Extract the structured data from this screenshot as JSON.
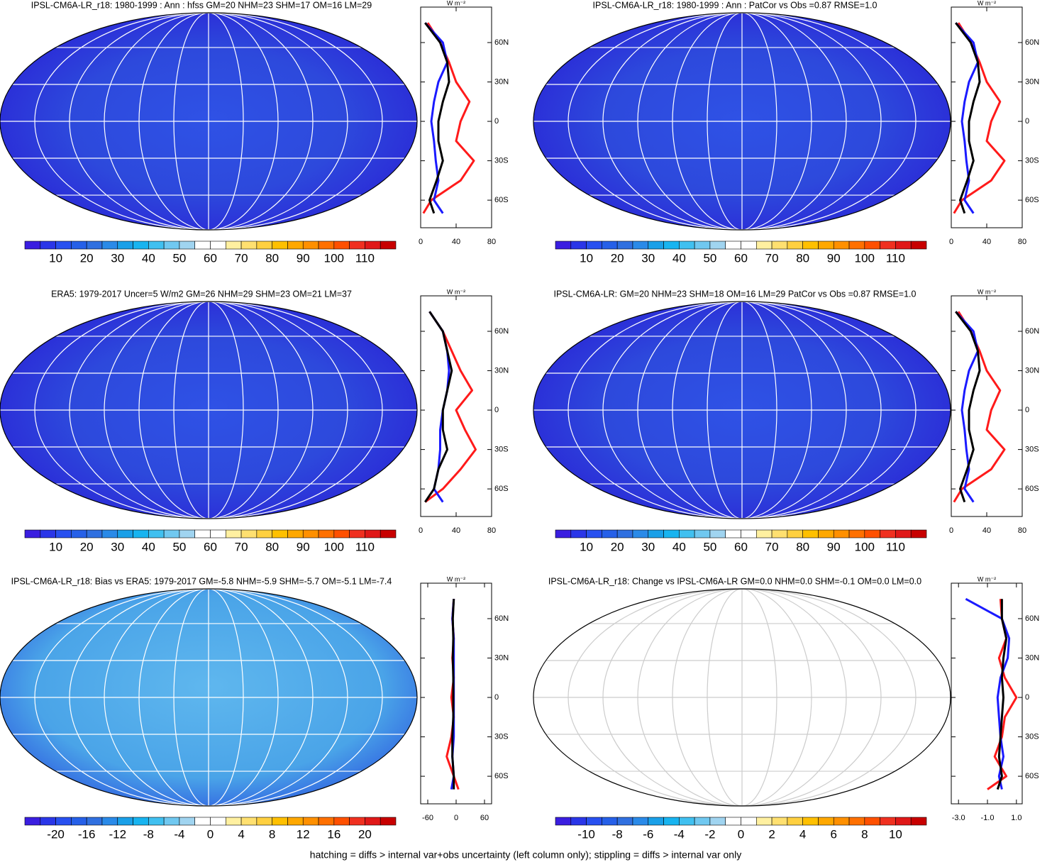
{
  "footer": "hatching = diffs > internal var+obs uncertainty (left column only); stippling = diffs > internal var only",
  "unit": "W m⁻²",
  "lat": [
    -70,
    -60,
    -45,
    -30,
    -15,
    0,
    15,
    30,
    45,
    60,
    75
  ],
  "colorbar_colors": [
    "#3a1ee0",
    "#2a36e8",
    "#2850f0",
    "#2660e8",
    "#3070e0",
    "#2a8ae8",
    "#1aa0e8",
    "#18b4f0",
    "#40c0f0",
    "#70c8f0",
    "#a0d4f0",
    "#ffffff",
    "#ffffff",
    "#fff0a0",
    "#ffe070",
    "#ffd040",
    "#ffc000",
    "#ffa800",
    "#ff9000",
    "#ff7000",
    "#ff5000",
    "#f03020",
    "#e01818",
    "#c80000"
  ],
  "panels": [
    {
      "title": "IPSL-CM6A-LR_r18: 1980-1999 : Ann : hfss GM=20 NHM=23 SHM=17 OM=16 LM=29",
      "colorbar": [
        10,
        20,
        30,
        40,
        50,
        60,
        70,
        80,
        90,
        100,
        110
      ],
      "zonal": {
        "xlim": [
          0,
          80
        ],
        "xticks": [
          0,
          40,
          80
        ],
        "ylim": [
          -81,
          87
        ],
        "yticks": [
          {
            "value": 60,
            "label": "60N"
          },
          {
            "value": 30,
            "label": "30N"
          },
          0,
          {
            "value": -30,
            "label": "30S"
          },
          {
            "value": -60,
            "label": "60S"
          }
        ],
        "series": [
          {
            "color": "#ff1a1a",
            "values": [
              3,
              12,
              45,
              60,
              40,
              45,
              55,
              40,
              32,
              22,
              8
            ]
          },
          {
            "color": "#1a1aff",
            "values": [
              25,
              15,
              20,
              17,
              15,
              12,
              15,
              20,
              30,
              25,
              5
            ]
          },
          {
            "color": "#000000",
            "values": [
              15,
              10,
              18,
              25,
              20,
              20,
              25,
              32,
              30,
              22,
              5
            ]
          }
        ]
      }
    },
    {
      "title": "IPSL-CM6A-LR_r18: 1980-1999 : Ann : PatCor vs Obs =0.87 RMSE=1.0",
      "colorbar": [
        10,
        20,
        30,
        40,
        50,
        60,
        70,
        80,
        90,
        100,
        110
      ],
      "zonal": {
        "xlim": [
          0,
          80
        ],
        "xticks": [
          0,
          40,
          80
        ],
        "ylim": [
          -81,
          87
        ],
        "yticks": [
          {
            "value": 60,
            "label": "60N"
          },
          {
            "value": 30,
            "label": "30N"
          },
          0,
          {
            "value": -30,
            "label": "30S"
          },
          {
            "value": -60,
            "label": "60S"
          }
        ],
        "series": [
          {
            "color": "#ff1a1a",
            "values": [
              3,
              12,
              45,
              60,
              40,
              45,
              55,
              40,
              32,
              22,
              8
            ]
          },
          {
            "color": "#1a1aff",
            "values": [
              25,
              15,
              20,
              17,
              15,
              12,
              15,
              20,
              30,
              25,
              5
            ]
          },
          {
            "color": "#000000",
            "values": [
              15,
              10,
              18,
              25,
              20,
              20,
              25,
              32,
              30,
              22,
              5
            ]
          }
        ]
      }
    },
    {
      "title": "ERA5: 1979-2017 Uncer=5 W/m2 GM=26 NHM=29 SHM=23 OM=21 LM=37",
      "colorbar": [
        10,
        20,
        30,
        40,
        50,
        60,
        70,
        80,
        90,
        100,
        110
      ],
      "zonal": {
        "xlim": [
          0,
          80
        ],
        "xticks": [
          0,
          40,
          80
        ],
        "ylim": [
          -81,
          87
        ],
        "yticks": [
          {
            "value": 60,
            "label": "60N"
          },
          {
            "value": 30,
            "label": "30N"
          },
          0,
          {
            "value": -30,
            "label": "30S"
          },
          {
            "value": -60,
            "label": "60S"
          }
        ],
        "series": [
          {
            "color": "#ff1a1a",
            "values": [
              5,
              25,
              45,
              62,
              50,
              40,
              58,
              45,
              35,
              25,
              10
            ]
          },
          {
            "color": "#1a1aff",
            "values": [
              25,
              15,
              20,
              22,
              22,
              25,
              30,
              32,
              30,
              25,
              10
            ]
          },
          {
            "color": "#000000",
            "values": [
              5,
              15,
              20,
              30,
              25,
              25,
              30,
              35,
              30,
              25,
              10
            ]
          }
        ]
      }
    },
    {
      "title": "IPSL-CM6A-LR: GM=20 NHM=23 SHM=18 OM=16 LM=29 PatCor vs Obs =0.87 RMSE=1.0",
      "colorbar": [
        10,
        20,
        30,
        40,
        50,
        60,
        70,
        80,
        90,
        100,
        110
      ],
      "zonal": {
        "xlim": [
          0,
          80
        ],
        "xticks": [
          0,
          40,
          80
        ],
        "ylim": [
          -81,
          87
        ],
        "yticks": [
          {
            "value": 60,
            "label": "60N"
          },
          {
            "value": 30,
            "label": "30N"
          },
          0,
          {
            "value": -30,
            "label": "30S"
          },
          {
            "value": -60,
            "label": "60S"
          }
        ],
        "series": [
          {
            "color": "#ff1a1a",
            "values": [
              3,
              12,
              45,
              60,
              40,
              45,
              55,
              40,
              32,
              22,
              8
            ]
          },
          {
            "color": "#1a1aff",
            "values": [
              25,
              15,
              20,
              17,
              15,
              12,
              15,
              20,
              30,
              25,
              5
            ]
          },
          {
            "color": "#000000",
            "values": [
              15,
              10,
              18,
              25,
              20,
              20,
              25,
              32,
              30,
              22,
              5
            ]
          }
        ]
      }
    },
    {
      "title": "IPSL-CM6A-LR_r18: Bias vs ERA5: 1979-2017 GM=-5.8 NHM=-5.9 SHM=-5.7 OM=-5.1 LM=-7.4",
      "colorbar": [
        -20,
        -16,
        -12,
        -8,
        -4,
        0,
        4,
        8,
        12,
        16,
        20
      ],
      "zonal": {
        "xlim": [
          -75,
          75
        ],
        "xticks": [
          -60,
          0,
          60
        ],
        "ylim": [
          -81,
          87
        ],
        "yticks": [
          {
            "value": 60,
            "label": "60N"
          },
          {
            "value": 30,
            "label": "30N"
          },
          0,
          {
            "value": -30,
            "label": "30S"
          },
          {
            "value": -60,
            "label": "60S"
          }
        ],
        "series": [
          {
            "color": "#ff1a1a",
            "values": [
              5,
              -5,
              -20,
              -10,
              -5,
              -10,
              -5,
              -8,
              -5,
              -8,
              -5
            ]
          },
          {
            "color": "#1a1aff",
            "values": [
              -10,
              -5,
              -8,
              -5,
              -5,
              -5,
              -5,
              -5,
              -5,
              -8,
              -5
            ]
          },
          {
            "color": "#000000",
            "values": [
              -5,
              -5,
              -8,
              -8,
              -6,
              -6,
              -6,
              -7,
              -6,
              -7,
              -5
            ]
          }
        ]
      }
    },
    {
      "title": "IPSL-CM6A-LR_r18: Change vs IPSL-CM6A-LR GM=0.0 NHM=0.0 SHM=-0.1 OM=0.0 LM=0.0",
      "colorbar": [
        -10,
        -8,
        -6,
        -4,
        -2,
        0,
        2,
        4,
        6,
        8,
        10
      ],
      "zonal": {
        "xlim": [
          -3.5,
          1.4
        ],
        "xticks": [
          {
            "value": -3,
            "label": "-3.0"
          },
          {
            "value": -1,
            "label": "-1.0"
          },
          {
            "value": 1,
            "label": "1.0"
          }
        ],
        "ylim": [
          -81,
          87
        ],
        "yticks": [
          {
            "value": 60,
            "label": "60N"
          },
          {
            "value": 30,
            "label": "30N"
          },
          0,
          {
            "value": -30,
            "label": "30S"
          },
          {
            "value": -60,
            "label": "60S"
          }
        ],
        "series": [
          {
            "color": "#ff1a1a",
            "values": [
              -1,
              0.3,
              -0.5,
              0,
              0.2,
              1,
              0.2,
              -0.2,
              0.3,
              0,
              -0.1
            ]
          },
          {
            "color": "#1a1aff",
            "values": [
              0,
              -0.2,
              0.1,
              -0.1,
              -0.2,
              -0.3,
              -0.1,
              0.4,
              0.5,
              0,
              -2.5
            ]
          },
          {
            "color": "#000000",
            "values": [
              -0.3,
              0,
              -0.2,
              -0.1,
              0,
              0.1,
              0,
              0.1,
              0.3,
              0,
              0
            ]
          }
        ]
      }
    }
  ]
}
